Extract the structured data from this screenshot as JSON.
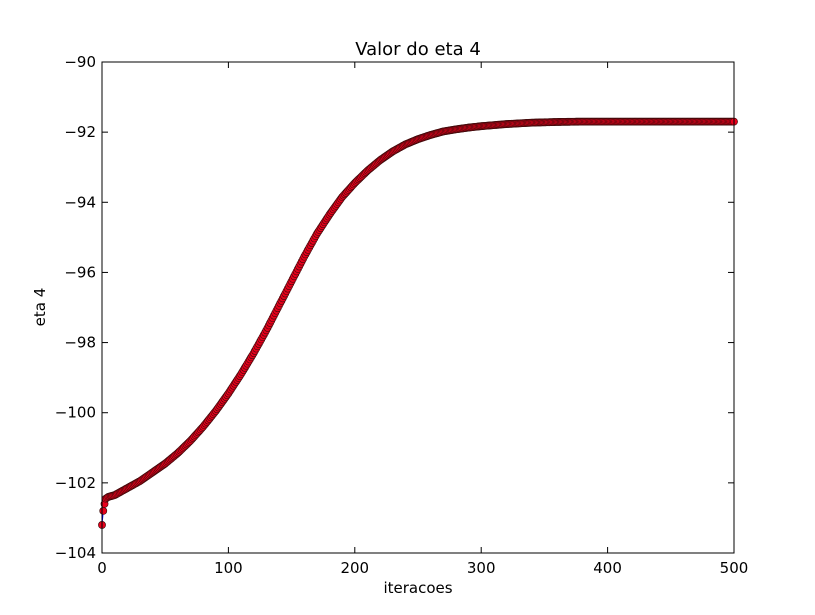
{
  "chart_data": {
    "type": "scatter",
    "title": "Valor do eta 4",
    "xlabel": "iteracoes",
    "ylabel": "eta 4",
    "xlim": [
      0,
      500
    ],
    "ylim": [
      -104,
      -90
    ],
    "xticks": [
      0,
      100,
      200,
      300,
      400,
      500
    ],
    "yticks": [
      -104,
      -102,
      -100,
      -98,
      -96,
      -94,
      -92,
      -90
    ],
    "grid": false,
    "colors": {
      "marker_fill": "#e8001c",
      "marker_edge": "#3a0a0a",
      "line": "#0000ff"
    },
    "series": [
      {
        "x": [
          0,
          1,
          2,
          3,
          5,
          10,
          20,
          30,
          40,
          50,
          60,
          70,
          80,
          90,
          100,
          110,
          120,
          130,
          140,
          150,
          160,
          170,
          180,
          190,
          200,
          210,
          220,
          230,
          240,
          250,
          260,
          270,
          280,
          290,
          300,
          320,
          340,
          360,
          380,
          400,
          420,
          440,
          460,
          480,
          500
        ],
        "y": [
          -103.2,
          -102.8,
          -102.6,
          -102.45,
          -102.4,
          -102.35,
          -102.15,
          -101.95,
          -101.7,
          -101.45,
          -101.15,
          -100.8,
          -100.4,
          -99.95,
          -99.45,
          -98.9,
          -98.3,
          -97.65,
          -96.95,
          -96.25,
          -95.55,
          -94.9,
          -94.35,
          -93.85,
          -93.45,
          -93.1,
          -92.8,
          -92.55,
          -92.35,
          -92.2,
          -92.08,
          -91.98,
          -91.92,
          -91.87,
          -91.83,
          -91.77,
          -91.73,
          -91.71,
          -91.7,
          -91.7,
          -91.7,
          -91.7,
          -91.7,
          -91.7,
          -91.7
        ]
      }
    ]
  }
}
